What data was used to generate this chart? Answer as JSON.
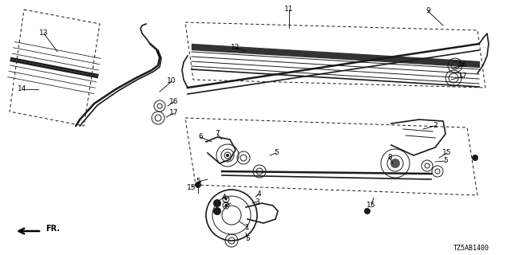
{
  "background_color": "#ffffff",
  "diagram_color": "#1a1a1a",
  "diagram_code": "TZ5AB1400",
  "labels": [
    [
      1,
      310,
      285,
      300,
      278
    ],
    [
      2,
      545,
      158,
      530,
      162
    ],
    [
      3,
      282,
      258,
      289,
      255
    ],
    [
      3,
      322,
      253,
      316,
      255
    ],
    [
      4,
      280,
      248,
      286,
      248
    ],
    [
      4,
      324,
      244,
      320,
      247
    ],
    [
      5,
      346,
      192,
      338,
      195
    ],
    [
      5,
      248,
      228,
      260,
      225
    ],
    [
      5,
      558,
      202,
      545,
      203
    ],
    [
      5,
      310,
      300,
      308,
      292
    ],
    [
      6,
      251,
      172,
      265,
      178
    ],
    [
      7,
      272,
      168,
      278,
      175
    ],
    [
      8,
      488,
      198,
      492,
      205
    ],
    [
      9,
      536,
      14,
      555,
      32
    ],
    [
      10,
      215,
      102,
      200,
      115
    ],
    [
      11,
      362,
      12,
      362,
      35
    ],
    [
      12,
      295,
      60,
      308,
      64
    ],
    [
      13,
      55,
      42,
      72,
      65
    ],
    [
      14,
      28,
      112,
      48,
      112
    ],
    [
      15,
      240,
      235,
      252,
      228
    ],
    [
      15,
      560,
      192,
      550,
      198
    ],
    [
      15,
      465,
      258,
      468,
      248
    ],
    [
      16,
      580,
      82,
      568,
      85
    ],
    [
      16,
      218,
      128,
      210,
      133
    ],
    [
      17,
      580,
      96,
      565,
      100
    ],
    [
      17,
      218,
      142,
      208,
      147
    ]
  ]
}
